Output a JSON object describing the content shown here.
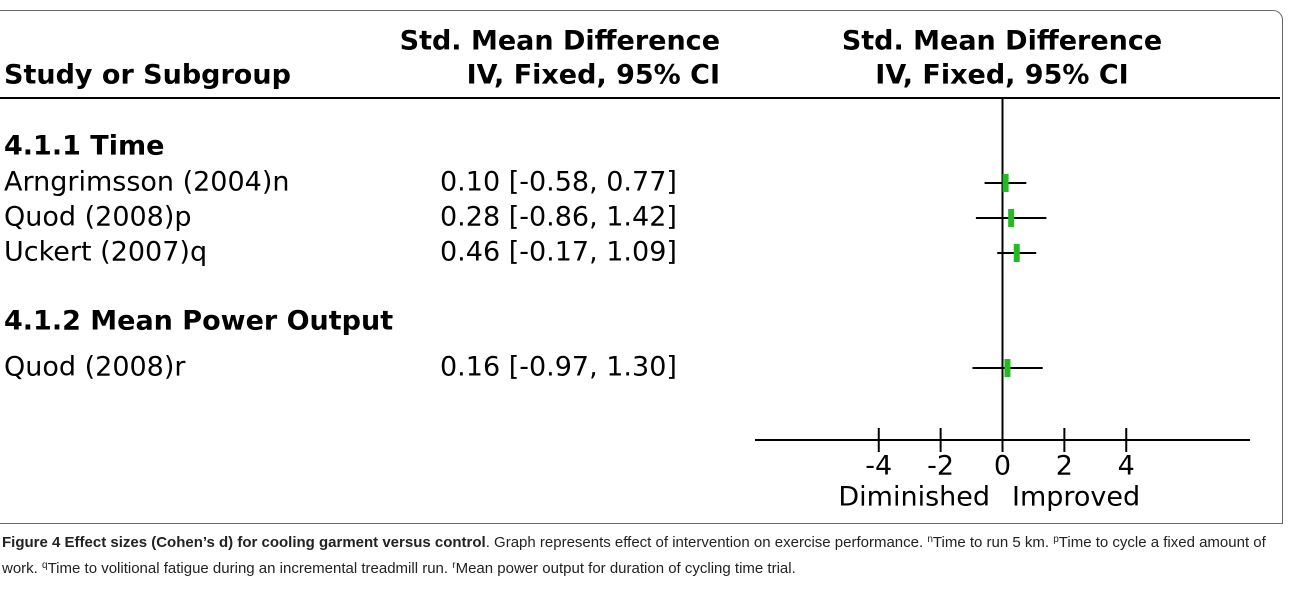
{
  "chart_data": {
    "type": "forest",
    "column_headers": {
      "study": "Study or Subgroup",
      "effect": [
        "Std. Mean Difference",
        "IV, Fixed, 95% CI"
      ],
      "plot": [
        "Std. Mean Difference",
        "IV, Fixed, 95% CI"
      ]
    },
    "subgroups": [
      {
        "name": "4.1.1 Time",
        "categories": [
          "Arngrimsson (2004)n",
          "Quod (2008)p",
          "Uckert (2007)q"
        ],
        "values": [
          0.1,
          0.28,
          0.46
        ],
        "ci_low": [
          -0.58,
          -0.86,
          -0.17
        ],
        "ci_high": [
          0.77,
          1.42,
          1.09
        ],
        "value_labels": [
          "0.10 [-0.58, 0.77]",
          "0.28 [-0.86, 1.42]",
          "0.46 [-0.17, 1.09]"
        ]
      },
      {
        "name": "4.1.2 Mean Power Output",
        "categories": [
          "Quod (2008)r"
        ],
        "values": [
          0.16
        ],
        "ci_low": [
          -0.97
        ],
        "ci_high": [
          1.3
        ],
        "value_labels": [
          "0.16 [-0.97, 1.30]"
        ]
      }
    ],
    "color": "#22bb22",
    "xlim": [
      -8,
      8
    ],
    "xticks": [
      -4,
      -2,
      0,
      2,
      4
    ],
    "x_label_left": "Diminished",
    "x_label_right": "Improved"
  },
  "caption": {
    "label": "Figure 4 Effect sizes (Cohen’s d) for cooling garment versus control",
    "text": ". Graph represents effect of intervention on exercise performance. ",
    "notes": [
      {
        "mark": "n",
        "text": "Time to run 5 km. "
      },
      {
        "mark": "p",
        "text": "Time to cycle a fixed amount of work. "
      },
      {
        "mark": "q",
        "text": "Time to volitional fatigue during an incremental treadmill run. "
      },
      {
        "mark": "r",
        "text": "Mean power output for duration of cycling time trial."
      }
    ]
  }
}
